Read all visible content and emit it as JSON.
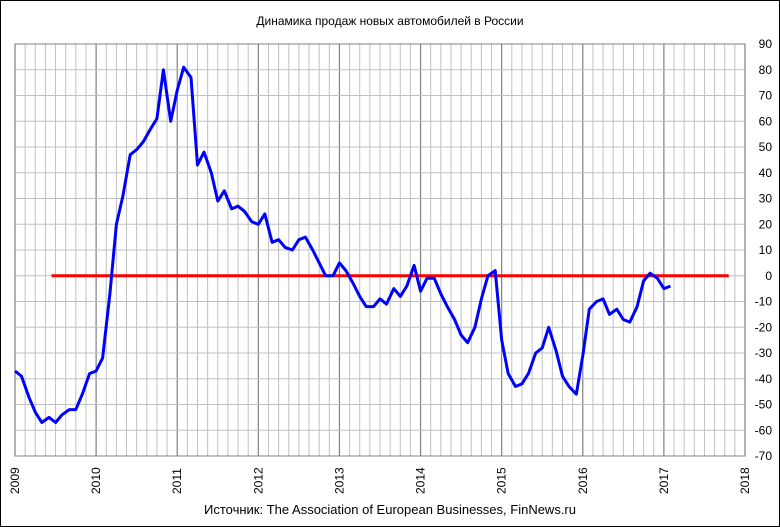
{
  "chart_data": {
    "type": "line",
    "title": "Динамика продаж новых автомобилей в России",
    "source": "Источник: The Association of European Businesses, FinNews.ru",
    "xlabel": "",
    "ylabel": "",
    "x_ticks": [
      "2009",
      "2010",
      "2011",
      "2012",
      "2013",
      "2014",
      "2015",
      "2016",
      "2017",
      "2018"
    ],
    "y_ticks": [
      90,
      80,
      70,
      60,
      50,
      40,
      30,
      20,
      10,
      0,
      -10,
      -20,
      -30,
      -40,
      -50,
      -60,
      -70
    ],
    "xlim": [
      2009.0,
      2018.0
    ],
    "ylim": [
      -70,
      90
    ],
    "y_axis_position": "right",
    "grid": true,
    "legend": "none",
    "colors": {
      "series": "#0000ff",
      "reference": "#ff0000",
      "grid": "#c0c0c0",
      "major_grid": "#808080"
    },
    "series": [
      {
        "x": [
          2009.0,
          2009.08,
          2009.17,
          2009.25,
          2009.33,
          2009.42,
          2009.5,
          2009.58,
          2009.67,
          2009.75,
          2009.83,
          2009.92,
          2010.0,
          2010.08,
          2010.17,
          2010.25,
          2010.33,
          2010.42,
          2010.5,
          2010.58,
          2010.67,
          2010.75,
          2010.83,
          2010.92,
          2011.0,
          2011.08,
          2011.17,
          2011.25,
          2011.33,
          2011.42,
          2011.5,
          2011.58,
          2011.67,
          2011.75,
          2011.83,
          2011.92,
          2012.0,
          2012.08,
          2012.17,
          2012.25,
          2012.33,
          2012.42,
          2012.5,
          2012.58,
          2012.67,
          2012.75,
          2012.83,
          2012.92,
          2013.0,
          2013.08,
          2013.17,
          2013.25,
          2013.33,
          2013.42,
          2013.5,
          2013.58,
          2013.67,
          2013.75,
          2013.83,
          2013.92,
          2014.0,
          2014.08,
          2014.17,
          2014.25,
          2014.33,
          2014.42,
          2014.5,
          2014.58,
          2014.67,
          2014.75,
          2014.83,
          2014.92,
          2015.0,
          2015.08,
          2015.17,
          2015.25,
          2015.33,
          2015.42,
          2015.5,
          2015.58,
          2015.67,
          2015.75,
          2015.83,
          2015.92,
          2016.0,
          2016.08,
          2016.17,
          2016.25,
          2016.33,
          2016.42,
          2016.5,
          2016.58,
          2016.67,
          2016.75,
          2016.83,
          2016.92,
          2017.0,
          2017.08
        ],
        "values": [
          -37,
          -39,
          -47,
          -53,
          -57,
          -55,
          -57,
          -54,
          -52,
          -52,
          -46,
          -38,
          -37,
          -32,
          -7,
          20,
          31,
          47,
          49,
          52,
          57,
          61,
          80,
          60,
          72,
          81,
          77,
          43,
          48,
          40,
          29,
          33,
          26,
          27,
          25,
          21,
          20,
          24,
          13,
          14,
          11,
          10,
          14,
          15,
          10,
          5,
          0,
          0,
          5,
          2,
          -3,
          -8,
          -12,
          -12,
          -9,
          -11,
          -5,
          -8,
          -4,
          4,
          -6,
          -1,
          -1,
          -7,
          -12,
          -17,
          -23,
          -26,
          -20,
          -9,
          0,
          2,
          -25,
          -38,
          -43,
          -42,
          -38,
          -30,
          -28,
          -20,
          -29,
          -39,
          -43,
          -46,
          -31,
          -13,
          -10,
          -9,
          -15,
          -13,
          -17,
          -18,
          -12,
          -2,
          1,
          -1,
          -5,
          -4
        ]
      },
      {
        "x": [
          2009.45,
          2017.8
        ],
        "values": [
          0,
          0
        ]
      }
    ]
  }
}
